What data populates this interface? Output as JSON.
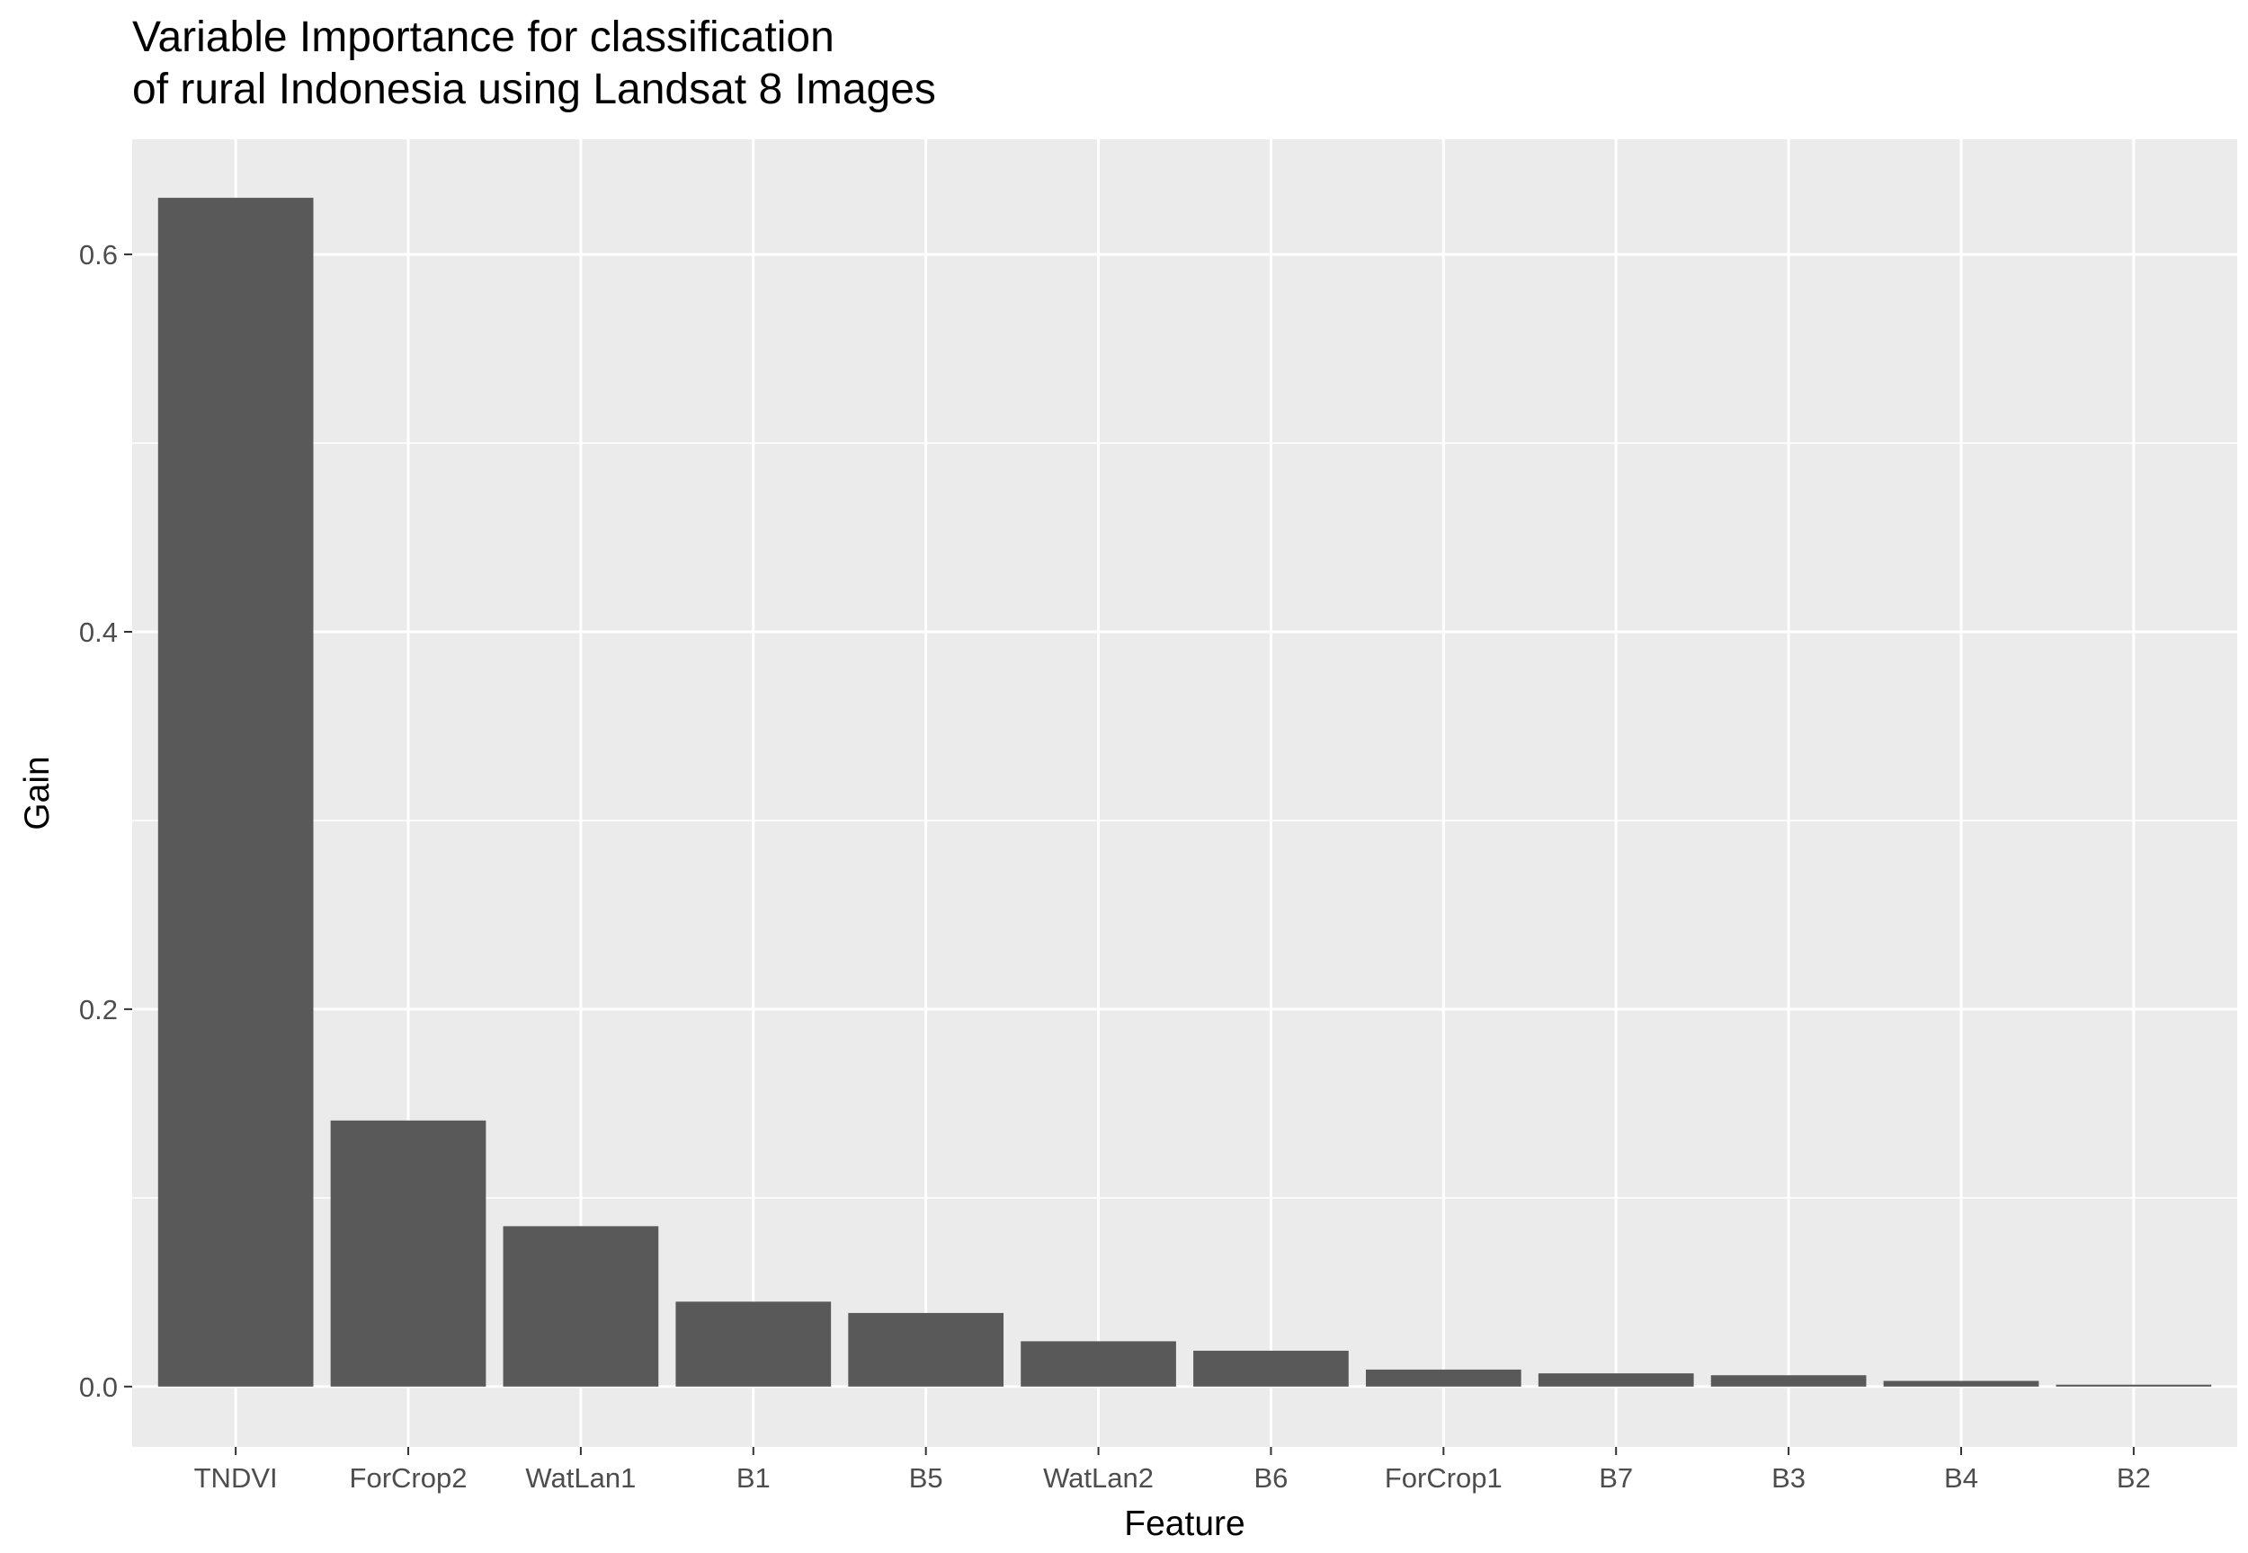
{
  "chart_data": {
    "type": "bar",
    "title_lines": [
      "Variable Importance for classification",
      "of rural Indonesia using Landsat 8 Images"
    ],
    "xlabel": "Feature",
    "ylabel": "Gain",
    "categories": [
      "TNDVI",
      "ForCrop2",
      "WatLan1",
      "B1",
      "B5",
      "WatLan2",
      "B6",
      "ForCrop1",
      "B7",
      "B3",
      "B4",
      "B2"
    ],
    "values": [
      0.63,
      0.141,
      0.085,
      0.045,
      0.039,
      0.024,
      0.019,
      0.009,
      0.007,
      0.006,
      0.003,
      0.001
    ],
    "ylim": [
      -0.032,
      0.661
    ],
    "yticks": [
      0.0,
      0.2,
      0.4,
      0.6
    ],
    "ytick_labels": [
      "0.0",
      "0.2",
      "0.4",
      "0.6"
    ],
    "grid": true,
    "legend": "none",
    "colors": {
      "bar": "#595959",
      "panel": "#ebebeb",
      "grid_major": "#ffffff",
      "tick_text": "#4d4d4d",
      "tick_mark": "#333333"
    }
  }
}
